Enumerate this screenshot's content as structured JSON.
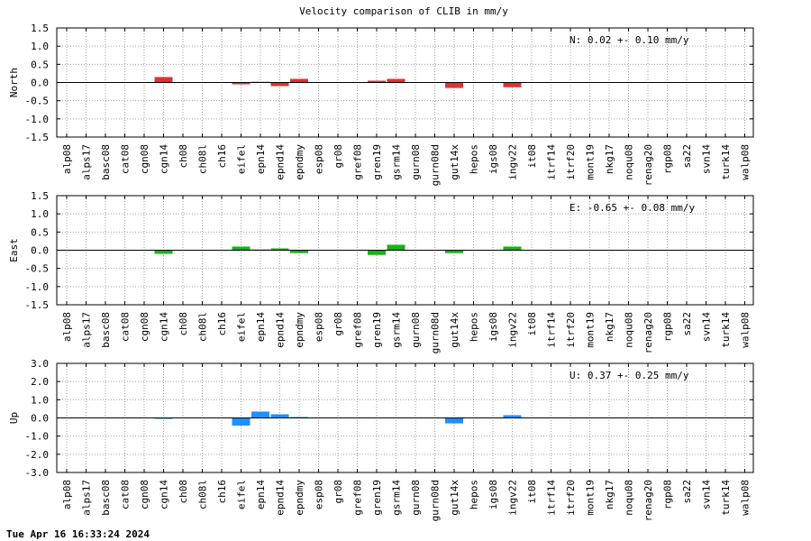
{
  "chart_data": {
    "type": "bar",
    "title": "Velocity comparison of CLIB in mm/y",
    "categories": [
      "alp08",
      "alps17",
      "basc08",
      "cat08",
      "cgn08",
      "cgn14",
      "ch08",
      "ch08l",
      "ch16",
      "eifel",
      "epn14",
      "epnd14",
      "epndmy",
      "esp08",
      "gr08",
      "gref08",
      "gren19",
      "gsrm14",
      "gurn08",
      "gurn08d",
      "gut14x",
      "hepos",
      "igs08",
      "ingv22",
      "it08",
      "itrf14",
      "itrf20",
      "mont19",
      "nkg17",
      "noqu08",
      "renag20",
      "rgp08",
      "sa22",
      "svn14",
      "turk14",
      "walp08"
    ],
    "panels": [
      {
        "ylabel": "North",
        "ylim": [
          -1.5,
          1.5
        ],
        "yticks": [
          1.5,
          1.0,
          0.5,
          0.0,
          -0.5,
          -1.0,
          -1.5
        ],
        "yticklabels": [
          "1.5",
          "1.0",
          "0.5",
          "0.0",
          "-0.5",
          "-1.0",
          "-1.5"
        ],
        "color": "#e03232",
        "annotation": "N:   0.02 +-  0.10 mm/y",
        "values": [
          0,
          0,
          0,
          0,
          0,
          0.15,
          0,
          0,
          0,
          -0.05,
          0.02,
          -0.1,
          0.1,
          0,
          0,
          0,
          0.05,
          0.1,
          0,
          0,
          -0.15,
          0,
          0,
          -0.13,
          0,
          0,
          0,
          0,
          0,
          0,
          0,
          0,
          0,
          0,
          0,
          0
        ]
      },
      {
        "ylabel": "East",
        "ylim": [
          -1.5,
          1.5
        ],
        "yticks": [
          1.5,
          1.0,
          0.5,
          0.0,
          -0.5,
          -1.0,
          -1.5
        ],
        "yticklabels": [
          "1.5",
          "1.0",
          "0.5",
          "0.0",
          "-0.5",
          "-1.0",
          "-1.5"
        ],
        "color": "#14b414",
        "annotation": "E:  -0.65 +-  0.08 mm/y",
        "values": [
          0,
          0,
          0,
          0,
          0,
          -0.1,
          0,
          0,
          0,
          0.1,
          0.02,
          0.05,
          -0.08,
          0,
          0,
          0,
          -0.13,
          0.15,
          0,
          0,
          -0.08,
          0,
          0,
          0.1,
          0,
          0,
          0,
          0,
          0,
          0,
          0,
          0,
          0,
          0,
          0,
          0
        ]
      },
      {
        "ylabel": "Up",
        "ylim": [
          -3.0,
          3.0
        ],
        "yticks": [
          3.0,
          2.0,
          1.0,
          0.0,
          -1.0,
          -2.0,
          -3.0
        ],
        "yticklabels": [
          "3.0",
          "2.0",
          "1.0",
          "0.0",
          "-1.0",
          "-2.0",
          "-3.0"
        ],
        "color": "#1e90ff",
        "annotation": "U:   0.37 +-  0.25 mm/y",
        "values": [
          0,
          0,
          0,
          0,
          0,
          -0.05,
          0,
          0,
          0,
          -0.42,
          0.35,
          0.2,
          0.05,
          0,
          0,
          0,
          0,
          0,
          0,
          0,
          -0.3,
          0,
          0,
          0.15,
          0,
          0,
          0,
          0,
          0,
          0,
          0,
          0,
          0,
          0,
          0,
          0
        ]
      }
    ],
    "grid": true
  },
  "footer": {
    "timestamp": "Tue Apr 16 16:33:24 2024"
  }
}
